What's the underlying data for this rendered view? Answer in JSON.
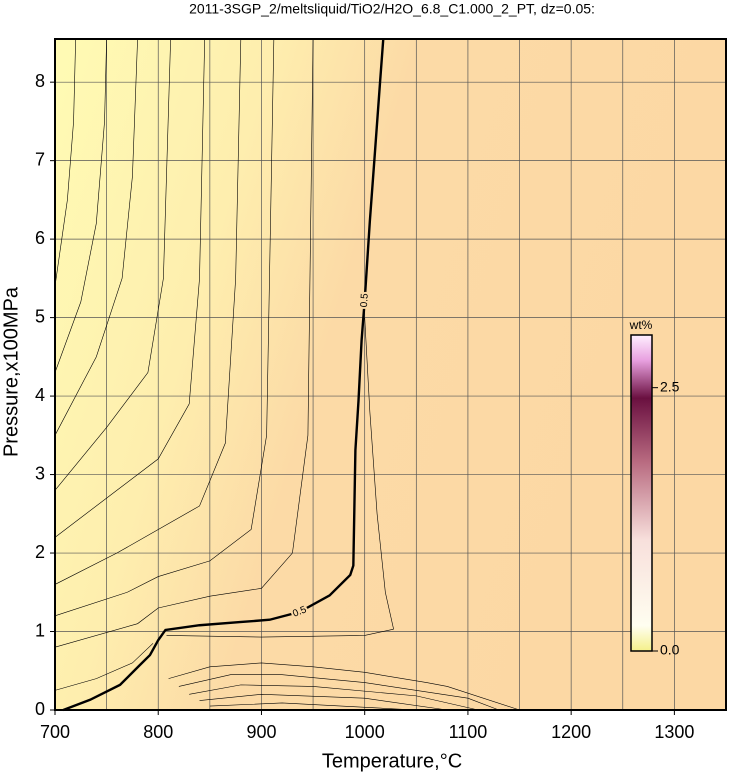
{
  "chart_data": {
    "type": "contour",
    "title": "2011-3SGP_2/meltsliquid/TiO2/H2O_6.8_C1.000_2_PT, dz=0.05:",
    "x_label": "Temperature,°C",
    "y_label": "Pressure,x100MPa",
    "xlim": [
      700,
      1350
    ],
    "ylim": [
      0,
      8.55
    ],
    "xticks": [
      700,
      800,
      900,
      1000,
      1100,
      1200,
      1300
    ],
    "xminorticks": [
      750,
      850,
      950,
      1050,
      1150,
      1250,
      1350
    ],
    "yticks": [
      0,
      1,
      2,
      3,
      4,
      5,
      6,
      7,
      8
    ],
    "grid": true,
    "contours": [
      {
        "level": 0.5,
        "x": [
          708,
          734,
          763,
          782,
          792,
          800,
          807,
          840,
          879,
          908,
          937,
          966,
          986,
          989,
          991,
          994,
          997,
          1000,
          1005,
          1010,
          1015,
          1018
        ],
        "y": [
          0,
          0.13,
          0.32,
          0.57,
          0.7,
          0.89,
          1.02,
          1.08,
          1.12,
          1.15,
          1.25,
          1.46,
          1.72,
          1.84,
          3.31,
          3.94,
          4.71,
          5.22,
          6.23,
          7.12,
          8.02,
          8.55
        ]
      },
      {
        "x": [
          700,
          712,
          718,
          720
        ],
        "y": [
          5.4,
          6.5,
          7.5,
          8.55
        ]
      },
      {
        "x": [
          700,
          725,
          740,
          748,
          750
        ],
        "y": [
          4.3,
          5.2,
          6.2,
          7.5,
          8.55
        ]
      },
      {
        "x": [
          700,
          740,
          765,
          775,
          780
        ],
        "y": [
          3.5,
          4.5,
          5.5,
          6.8,
          8.55
        ]
      },
      {
        "x": [
          700,
          750,
          790,
          805,
          812
        ],
        "y": [
          2.8,
          3.6,
          4.3,
          5.5,
          8.55
        ]
      },
      {
        "x": [
          700,
          760,
          800,
          830,
          840,
          845
        ],
        "y": [
          2.2,
          2.8,
          3.2,
          3.9,
          5.5,
          8.55
        ]
      },
      {
        "x": [
          700,
          760,
          800,
          840,
          865,
          875,
          880
        ],
        "y": [
          1.6,
          2.0,
          2.3,
          2.6,
          3.4,
          5.5,
          8.55
        ]
      },
      {
        "x": [
          700,
          770,
          800,
          850,
          890,
          905,
          912
        ],
        "y": [
          1.2,
          1.5,
          1.7,
          1.9,
          2.3,
          3.5,
          8.55
        ]
      },
      {
        "x": [
          700,
          780,
          800,
          850,
          900,
          930,
          945,
          950
        ],
        "y": [
          0.8,
          1.1,
          1.3,
          1.45,
          1.55,
          2.0,
          3.5,
          8.55
        ]
      },
      {
        "x": [
          1028,
          1020,
          1012,
          1005,
          1000
        ],
        "y": [
          1.03,
          1.5,
          2.5,
          3.8,
          5.0
        ]
      },
      {
        "x": [
          808,
          900,
          1000,
          1028
        ],
        "y": [
          0.95,
          0.93,
          0.95,
          1.03
        ]
      },
      {
        "x": [
          700,
          740,
          775,
          795
        ],
        "y": [
          0.25,
          0.4,
          0.6,
          0.85
        ]
      },
      {
        "x": [
          810,
          850,
          900,
          950,
          1000,
          1060,
          1080,
          1150
        ],
        "y": [
          0.4,
          0.55,
          0.6,
          0.55,
          0.48,
          0.35,
          0.3,
          0
        ]
      },
      {
        "x": [
          820,
          870,
          920,
          1000,
          1100,
          1130
        ],
        "y": [
          0.3,
          0.45,
          0.45,
          0.35,
          0.15,
          0
        ]
      },
      {
        "x": [
          830,
          880,
          950,
          1050,
          1110
        ],
        "y": [
          0.2,
          0.32,
          0.3,
          0.18,
          0
        ]
      },
      {
        "x": [
          840,
          900,
          1000,
          1080
        ],
        "y": [
          0.12,
          0.2,
          0.15,
          0
        ]
      },
      {
        "x": [
          850,
          920,
          1050
        ],
        "y": [
          0.05,
          0.09,
          0
        ]
      }
    ],
    "colorbar": {
      "title": "wt%",
      "lim": [
        0,
        3.0
      ],
      "ticks": [
        {
          "value": 0,
          "label": "0.0"
        },
        2.5
      ]
    }
  }
}
